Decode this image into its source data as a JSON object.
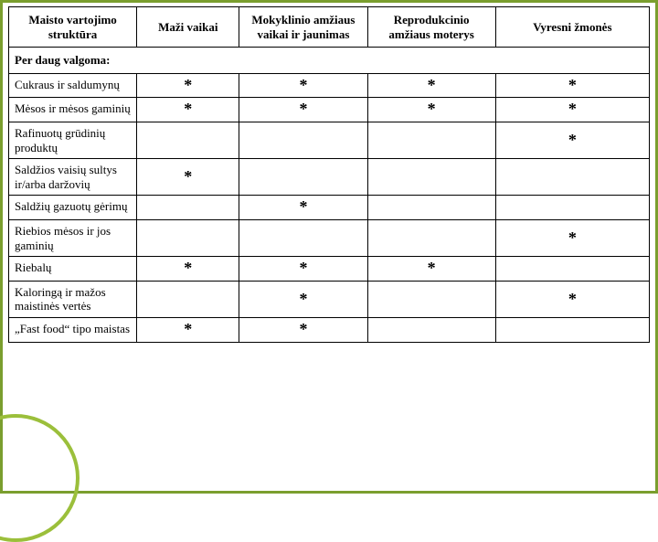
{
  "colors": {
    "slide_border": "#7a9e2e",
    "table_border": "#000000",
    "circle_stroke": "#9bbf3b",
    "background": "#ffffff",
    "text": "#000000"
  },
  "mark_glyph": "*",
  "table": {
    "columns": [
      "Maisto vartojimo struktūra",
      "Maži vaikai",
      "Mokyklinio amžiaus vaikai ir jaunimas",
      "Reprodukcinio amžiaus moterys",
      "Vyresni žmonės"
    ],
    "section_label": "Per daug valgoma:",
    "rows": [
      {
        "label": "Cukraus ir saldumynų",
        "marks": [
          true,
          true,
          true,
          true
        ]
      },
      {
        "label": "Mėsos ir mėsos gaminių",
        "marks": [
          true,
          true,
          true,
          true
        ]
      },
      {
        "label": "Rafinuotų grūdinių produktų",
        "marks": [
          false,
          false,
          false,
          true
        ]
      },
      {
        "label": "Saldžios vaisių sultys ir/arba daržovių",
        "marks": [
          true,
          false,
          false,
          false
        ]
      },
      {
        "label": "Saldžių gazuotų gėrimų",
        "marks": [
          false,
          true,
          false,
          false
        ]
      },
      {
        "label": "Riebios mėsos ir jos gaminių",
        "marks": [
          false,
          false,
          false,
          true
        ]
      },
      {
        "label": "Riebalų",
        "marks": [
          true,
          true,
          true,
          false
        ]
      },
      {
        "label": "Kaloringą ir mažos maistinės vertės",
        "marks": [
          false,
          true,
          false,
          true
        ]
      },
      {
        "label": "„Fast food“ tipo maistas",
        "marks": [
          true,
          true,
          false,
          false
        ]
      }
    ]
  }
}
